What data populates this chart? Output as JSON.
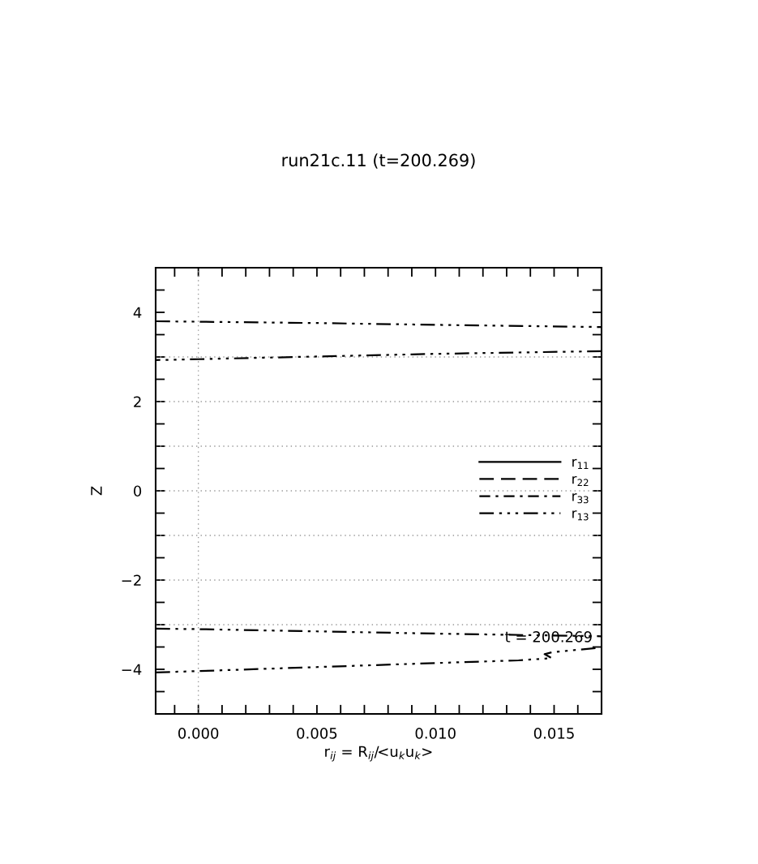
{
  "chart_data": {
    "type": "line",
    "title": "run21c.11 (t=200.269)",
    "xlabel": "r$_{ij}$ = R$_{ij}$/<u$_{k}$u$_{k}$>",
    "ylabel": "Z",
    "xlim": [
      -0.0018,
      0.017
    ],
    "ylim": [
      -5,
      5
    ],
    "xticks": [
      {
        "value": -0.001,
        "label": null
      },
      {
        "value": 0.0,
        "label": "0.000"
      },
      {
        "value": 0.001,
        "label": null
      },
      {
        "value": 0.002,
        "label": null
      },
      {
        "value": 0.003,
        "label": null
      },
      {
        "value": 0.004,
        "label": null
      },
      {
        "value": 0.005,
        "label": "0.005"
      },
      {
        "value": 0.006,
        "label": null
      },
      {
        "value": 0.007,
        "label": null
      },
      {
        "value": 0.008,
        "label": null
      },
      {
        "value": 0.009,
        "label": null
      },
      {
        "value": 0.01,
        "label": "0.010"
      },
      {
        "value": 0.011,
        "label": null
      },
      {
        "value": 0.012,
        "label": null
      },
      {
        "value": 0.013,
        "label": null
      },
      {
        "value": 0.014,
        "label": null
      },
      {
        "value": 0.015,
        "label": "0.015"
      },
      {
        "value": 0.016,
        "label": null
      }
    ],
    "yticks": [
      {
        "value": -4.5,
        "label": null
      },
      {
        "value": -4,
        "label": "−4"
      },
      {
        "value": -3.5,
        "label": null
      },
      {
        "value": -3,
        "label": null
      },
      {
        "value": -2.5,
        "label": null
      },
      {
        "value": -2,
        "label": "−2"
      },
      {
        "value": -1.5,
        "label": null
      },
      {
        "value": -1,
        "label": null
      },
      {
        "value": -0.5,
        "label": null
      },
      {
        "value": 0,
        "label": "0"
      },
      {
        "value": 0.5,
        "label": null
      },
      {
        "value": 1,
        "label": null
      },
      {
        "value": 1.5,
        "label": null
      },
      {
        "value": 2,
        "label": "2"
      },
      {
        "value": 2.5,
        "label": null
      },
      {
        "value": 3,
        "label": null
      },
      {
        "value": 3.5,
        "label": null
      },
      {
        "value": 4,
        "label": "4"
      },
      {
        "value": 4.5,
        "label": null
      }
    ],
    "ref_lines": [
      {
        "axis": "x",
        "value": 0,
        "label": null,
        "color": "#999999",
        "line_style": "dotted"
      },
      {
        "axis": "y",
        "value": -3,
        "label": null,
        "color": "#999999",
        "line_style": "dotted"
      },
      {
        "axis": "y",
        "value": -2,
        "label": null,
        "color": "#999999",
        "line_style": "dotted"
      },
      {
        "axis": "y",
        "value": -1,
        "label": null,
        "color": "#999999",
        "line_style": "dotted"
      },
      {
        "axis": "y",
        "value": 0,
        "label": null,
        "color": "#999999",
        "line_style": "dotted"
      },
      {
        "axis": "y",
        "value": 1,
        "label": null,
        "color": "#999999",
        "line_style": "dotted"
      },
      {
        "axis": "y",
        "value": 2,
        "label": null,
        "color": "#999999",
        "line_style": "dotted"
      },
      {
        "axis": "y",
        "value": 3,
        "label": null,
        "color": "#999999",
        "line_style": "dotted"
      }
    ],
    "annotations": [
      "t = 200.269"
    ],
    "legend": "right",
    "series": [
      {
        "name": "r$_{11}$",
        "color": "#000000",
        "line_style": "solid"
      },
      {
        "name": "r$_{22}$",
        "color": "#000000",
        "line_style": "dashed"
      },
      {
        "name": "r$_{33}$",
        "color": "#000000",
        "line_style": "dashdot"
      },
      {
        "name": "r$_{13}$",
        "color": "#000000",
        "line_style": "dashdotdot",
        "x": [
          -0.0018,
          0.0,
          0.005,
          0.01,
          0.017,
          null,
          0.017,
          0.01,
          0.005,
          0.0,
          -0.0018,
          null,
          -0.0018,
          0.0,
          0.005,
          0.01,
          0.017,
          null,
          -0.0018,
          0.0,
          0.005,
          0.01,
          0.0135,
          0.0149,
          0.0146,
          0.0149,
          0.017
        ],
        "values": [
          3.8,
          3.79,
          3.76,
          3.72,
          3.67,
          null,
          3.13,
          3.07,
          3.01,
          2.95,
          2.93,
          null,
          -3.09,
          -3.1,
          -3.15,
          -3.2,
          -3.26,
          null,
          -4.07,
          -4.04,
          -3.95,
          -3.86,
          -3.8,
          -3.75,
          -3.66,
          -3.62,
          -3.51
        ]
      }
    ]
  }
}
